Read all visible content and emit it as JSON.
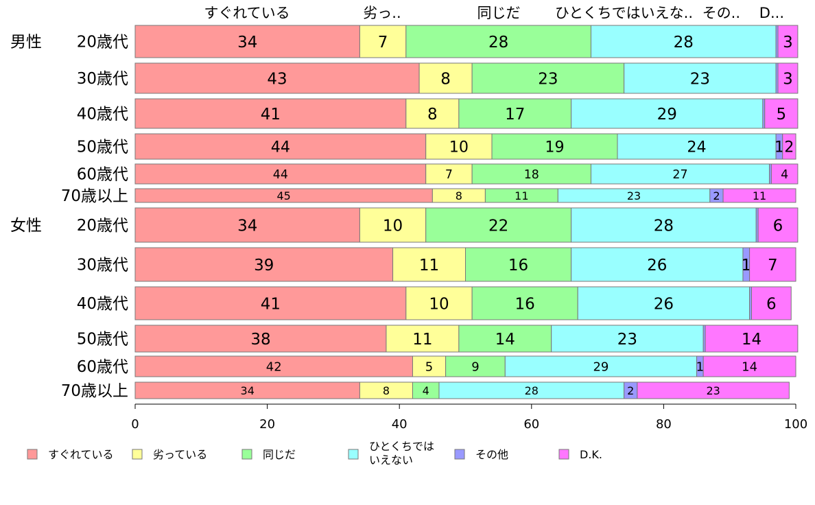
{
  "colors": {
    "sugureteiru": "#ff9999",
    "otteiru": "#ffff99",
    "onaji": "#99ff99",
    "hitokuchi": "#99ffff",
    "sonota": "#9999ff",
    "dk": "#ff77ff"
  },
  "chart_data": {
    "type": "bar",
    "orientation": "horizontal",
    "stacked": true,
    "title": "",
    "xlabel": "",
    "ylabel": "",
    "xlim": [
      0,
      100
    ],
    "x_ticks": [
      "0",
      "20",
      "40",
      "60",
      "80",
      "100"
    ],
    "grid": false,
    "legend_position": "bottom",
    "group_labels": [
      "男性",
      "女性"
    ],
    "categories": [
      "20歳代",
      "30歳代",
      "40歳代",
      "50歳代",
      "60歳代",
      "70歳以上",
      "20歳代",
      "30歳代",
      "40歳代",
      "50歳代",
      "60歳代",
      "70歳以上"
    ],
    "top_labels": [
      "すぐれている",
      "劣っ..",
      "同じだ",
      "ひとくちではいえな..",
      "その..",
      "D..."
    ],
    "series": [
      {
        "name": "すぐれている",
        "color_key": "sugureteiru",
        "values": [
          34,
          43,
          41,
          44,
          44,
          45,
          34,
          39,
          41,
          38,
          42,
          34
        ]
      },
      {
        "name": "劣っている",
        "color_key": "otteiru",
        "values": [
          7,
          8,
          8,
          10,
          7,
          8,
          10,
          11,
          10,
          11,
          5,
          8
        ]
      },
      {
        "name": "同じだ",
        "color_key": "onaji",
        "values": [
          28,
          23,
          17,
          19,
          18,
          11,
          22,
          16,
          16,
          14,
          9,
          4
        ]
      },
      {
        "name": "ひとくちでは\nいえない",
        "color_key": "hitokuchi",
        "values": [
          28,
          23,
          29,
          24,
          27,
          23,
          28,
          26,
          26,
          23,
          29,
          28
        ]
      },
      {
        "name": "その他",
        "color_key": "sonota",
        "values": [
          0.3,
          0.3,
          0.3,
          1,
          0.3,
          2,
          0.3,
          1,
          0.3,
          0.3,
          1,
          2
        ]
      },
      {
        "name": "D.K.",
        "color_key": "dk",
        "values": [
          3,
          3,
          5,
          2,
          4,
          11,
          6,
          7,
          6,
          14,
          14,
          23
        ]
      }
    ],
    "data_labels": [
      [
        "34",
        "43",
        "41",
        "44",
        "44",
        "45",
        "34",
        "39",
        "41",
        "38",
        "42",
        "34"
      ],
      [
        "7",
        "8",
        "8",
        "10",
        "7",
        "8",
        "10",
        "11",
        "10",
        "11",
        "5",
        "8"
      ],
      [
        "28",
        "23",
        "17",
        "19",
        "18",
        "11",
        "22",
        "16",
        "16",
        "14",
        "9",
        "4"
      ],
      [
        "28",
        "23",
        "29",
        "24",
        "27",
        "23",
        "28",
        "26",
        "26",
        "23",
        "29",
        "28"
      ],
      [
        "",
        "",
        "",
        "1",
        "",
        "2",
        "",
        "1",
        "",
        "",
        "1",
        "2"
      ],
      [
        "3",
        "3",
        "5",
        "2",
        "4",
        "11",
        "6",
        "7",
        "6",
        "14",
        "14",
        "23"
      ]
    ]
  }
}
